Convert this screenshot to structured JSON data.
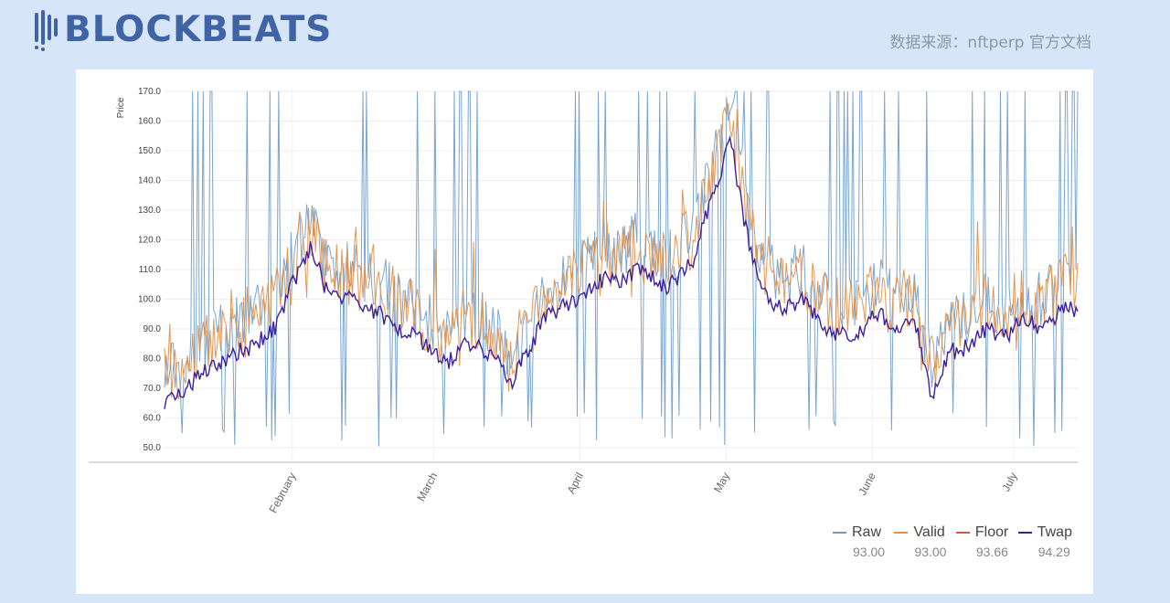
{
  "brand": {
    "name": "BLOCKBEATS"
  },
  "source": "数据来源：nftperp 官方文档",
  "chart_data": {
    "type": "line",
    "ylabel": "Price",
    "ylim": [
      50,
      170
    ],
    "yticks": [
      "50.0",
      "60.0",
      "70.0",
      "80.0",
      "90.0",
      "100.0",
      "110.0",
      "120.0",
      "130.0",
      "140.0",
      "150.0",
      "160.0",
      "170.0"
    ],
    "x_labels": [
      {
        "label": "February",
        "x": 0.14
      },
      {
        "label": "March",
        "x": 0.295
      },
      {
        "label": "April",
        "x": 0.455
      },
      {
        "label": "May",
        "x": 0.615
      },
      {
        "label": "June",
        "x": 0.775
      },
      {
        "label": "July",
        "x": 0.93
      }
    ],
    "grid": true,
    "legend_position": "bottom-right",
    "series": [
      {
        "name": "Raw",
        "color": "#6a9bcb",
        "last": "93.00"
      },
      {
        "name": "Valid",
        "color": "#e0914a",
        "last": "93.00"
      },
      {
        "name": "Floor",
        "color": "#d9534f",
        "last": "93.66"
      },
      {
        "name": "Twap",
        "color": "#3e1f9c",
        "last": "94.29"
      }
    ],
    "twap_profile": [
      [
        0.0,
        66
      ],
      [
        0.02,
        68
      ],
      [
        0.04,
        75
      ],
      [
        0.06,
        78
      ],
      [
        0.08,
        82
      ],
      [
        0.1,
        85
      ],
      [
        0.12,
        90
      ],
      [
        0.14,
        105
      ],
      [
        0.16,
        118
      ],
      [
        0.175,
        104
      ],
      [
        0.2,
        100
      ],
      [
        0.23,
        96
      ],
      [
        0.26,
        90
      ],
      [
        0.29,
        84
      ],
      [
        0.31,
        79
      ],
      [
        0.33,
        86
      ],
      [
        0.35,
        83
      ],
      [
        0.37,
        77
      ],
      [
        0.38,
        72
      ],
      [
        0.4,
        84
      ],
      [
        0.42,
        95
      ],
      [
        0.45,
        100
      ],
      [
        0.48,
        107
      ],
      [
        0.5,
        105
      ],
      [
        0.52,
        111
      ],
      [
        0.55,
        103
      ],
      [
        0.58,
        114
      ],
      [
        0.6,
        135
      ],
      [
        0.62,
        153
      ],
      [
        0.64,
        118
      ],
      [
        0.66,
        100
      ],
      [
        0.68,
        97
      ],
      [
        0.7,
        100
      ],
      [
        0.72,
        91
      ],
      [
        0.74,
        88
      ],
      [
        0.76,
        89
      ],
      [
        0.78,
        95
      ],
      [
        0.8,
        91
      ],
      [
        0.82,
        94
      ],
      [
        0.84,
        68
      ],
      [
        0.86,
        82
      ],
      [
        0.88,
        84
      ],
      [
        0.9,
        90
      ],
      [
        0.92,
        87
      ],
      [
        0.94,
        93
      ],
      [
        0.96,
        90
      ],
      [
        0.98,
        96
      ],
      [
        1.0,
        97
      ]
    ]
  }
}
